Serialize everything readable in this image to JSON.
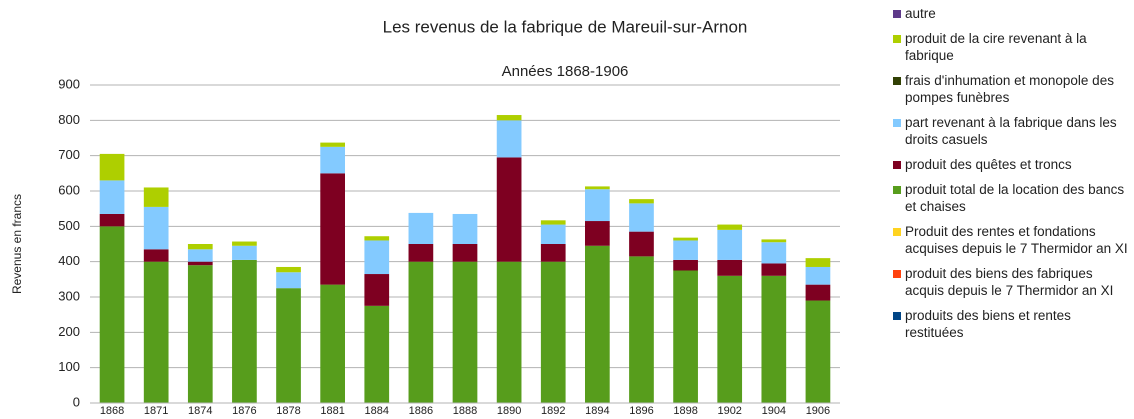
{
  "chart_data": {
    "type": "stacked_bar",
    "title": "Les revenus de la fabrique de Mareuil-sur-Arnon",
    "subtitle": "Années 1868-1906",
    "y_label": "Revenus en francs",
    "categories": [
      "1868",
      "1871",
      "1874",
      "1876",
      "1878",
      "1881",
      "1884",
      "1886",
      "1888",
      "1890",
      "1892",
      "1894",
      "1896",
      "1898",
      "1902",
      "1904",
      "1906"
    ],
    "series": [
      {
        "name": "autre",
        "color": "#5e3a8a",
        "values": [
          0,
          0,
          0,
          0,
          0,
          0,
          0,
          0,
          0,
          0,
          0,
          0,
          0,
          0,
          0,
          0,
          0
        ]
      },
      {
        "name": "produit de la cire revenant à la fabrique",
        "color": "#aecf00",
        "values": [
          75,
          55,
          15,
          12,
          15,
          12,
          12,
          0,
          0,
          15,
          12,
          8,
          12,
          8,
          15,
          8,
          25
        ]
      },
      {
        "name": "frais d'inhumation et monopole des pompes funèbres",
        "color": "#314004",
        "values": [
          0,
          0,
          0,
          0,
          0,
          0,
          0,
          0,
          0,
          0,
          0,
          0,
          0,
          0,
          0,
          0,
          0
        ]
      },
      {
        "name": "part revenant à la fabrique dans les droits casuels",
        "color": "#83caff",
        "values": [
          95,
          120,
          35,
          40,
          45,
          75,
          95,
          88,
          85,
          105,
          55,
          90,
          80,
          55,
          85,
          60,
          50
        ]
      },
      {
        "name": "produit des quêtes et troncs",
        "color": "#7e0021",
        "values": [
          35,
          35,
          10,
          0,
          0,
          315,
          90,
          50,
          50,
          295,
          50,
          70,
          70,
          30,
          45,
          35,
          45
        ]
      },
      {
        "name": "produit total de la location des bancs et chaises",
        "color": "#579d1c",
        "values": [
          500,
          400,
          390,
          405,
          325,
          335,
          275,
          400,
          400,
          400,
          400,
          445,
          415,
          375,
          360,
          360,
          290
        ]
      },
      {
        "name": "Produit des rentes et fondations acquises depuis le 7 Thermidor an XI",
        "color": "#ffd320",
        "values": [
          0,
          0,
          0,
          0,
          0,
          0,
          0,
          0,
          0,
          0,
          0,
          0,
          0,
          0,
          0,
          0,
          0
        ]
      },
      {
        "name": "produit des biens des fabriques acquis depuis le 7 Thermidor an XI",
        "color": "#ff420e",
        "values": [
          0,
          0,
          0,
          0,
          0,
          0,
          0,
          0,
          0,
          0,
          0,
          0,
          0,
          0,
          0,
          0,
          0
        ]
      },
      {
        "name": "produits des biens et rentes restituées",
        "color": "#004586",
        "values": [
          0,
          0,
          0,
          0,
          0,
          0,
          0,
          0,
          0,
          0,
          0,
          0,
          0,
          0,
          0,
          0,
          0
        ]
      }
    ],
    "ylim": [
      0,
      900
    ],
    "yticks": [
      0,
      100,
      200,
      300,
      400,
      500,
      600,
      700,
      800,
      900
    ],
    "grid": true,
    "legend": "right"
  }
}
